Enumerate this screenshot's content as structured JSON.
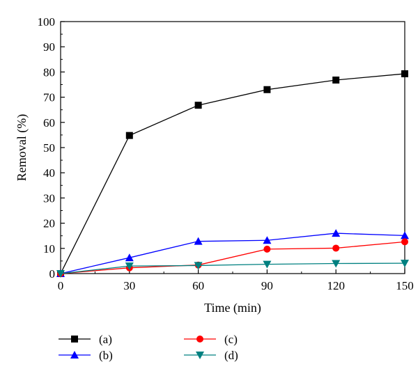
{
  "chart_data": {
    "type": "line",
    "title": "",
    "xlabel": "Time (min)",
    "ylabel": "Removal (%)",
    "xlim": [
      0,
      150
    ],
    "ylim": [
      0,
      100
    ],
    "xticks": [
      0,
      30,
      60,
      90,
      120,
      150
    ],
    "yticks": [
      0,
      10,
      20,
      30,
      40,
      50,
      60,
      70,
      80,
      90,
      100
    ],
    "grid": false,
    "legend_position": "bottom",
    "x": [
      0,
      30,
      60,
      90,
      120,
      150
    ],
    "series": [
      {
        "name": "(a)",
        "color": "#000000",
        "marker": "square",
        "values": [
          0,
          54.8,
          66.8,
          73.0,
          76.8,
          79.3
        ]
      },
      {
        "name": "(b)",
        "color": "#0000ff",
        "marker": "triangle-up",
        "values": [
          0,
          6.3,
          12.8,
          13.2,
          16.0,
          15.1
        ]
      },
      {
        "name": "(c)",
        "color": "#ff0000",
        "marker": "circle",
        "values": [
          0,
          2.3,
          3.4,
          9.7,
          10.1,
          12.6
        ]
      },
      {
        "name": "(d)",
        "color": "#008080",
        "marker": "triangle-down",
        "values": [
          0,
          3.0,
          3.2,
          3.7,
          4.0,
          4.1
        ]
      }
    ]
  }
}
